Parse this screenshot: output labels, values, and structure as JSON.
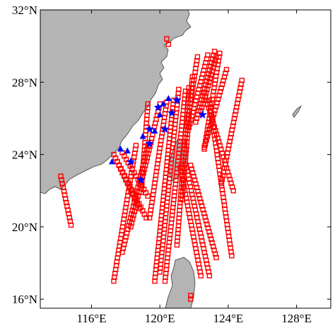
{
  "map": {
    "lat_ticks": [
      {
        "value": 32,
        "label": "32°N"
      },
      {
        "value": 28,
        "label": "28°N"
      },
      {
        "value": 24,
        "label": "24°N"
      },
      {
        "value": 20,
        "label": "20°N"
      },
      {
        "value": 16,
        "label": "16°N"
      }
    ],
    "lon_ticks": [
      {
        "value": 116,
        "label": "116°E"
      },
      {
        "value": 120,
        "label": "120°E"
      },
      {
        "value": 124,
        "label": "124°E"
      },
      {
        "value": 128,
        "label": "128°E"
      }
    ],
    "extent": {
      "lon": [
        113.0,
        130.0
      ],
      "lat": [
        15.5,
        32.0
      ]
    },
    "colors": {
      "land": "#b4b4b4",
      "land_edge": "#3c3c3c",
      "sea": "#ffffff",
      "track": "#ff0000",
      "station": "#0000ff"
    },
    "tracks": [
      [
        [
          114.2,
          22.8
        ],
        [
          114.8,
          20.1
        ]
      ],
      [
        [
          117.3,
          24.0
        ],
        [
          119.2,
          20.5
        ]
      ],
      [
        [
          117.8,
          24.1
        ],
        [
          119.3,
          21.7
        ]
      ],
      [
        [
          117.4,
          23.8
        ],
        [
          118.8,
          21.0
        ]
      ],
      [
        [
          118.6,
          24.5
        ],
        [
          117.3,
          17.0
        ]
      ],
      [
        [
          119.3,
          24.5
        ],
        [
          117.8,
          18.6
        ]
      ],
      [
        [
          119.3,
          26.8
        ],
        [
          118.9,
          21.9
        ]
      ],
      [
        [
          120.0,
          26.8
        ],
        [
          118.3,
          20.0
        ]
      ],
      [
        [
          120.4,
          26.9
        ],
        [
          119.4,
          20.5
        ]
      ],
      [
        [
          120.8,
          27.0
        ],
        [
          119.7,
          17.0
        ]
      ],
      [
        [
          121.1,
          27.6
        ],
        [
          120.0,
          17.5
        ]
      ],
      [
        [
          121.5,
          27.5
        ],
        [
          120.3,
          17.0
        ]
      ],
      [
        [
          121.7,
          27.7
        ],
        [
          121.0,
          19.0
        ]
      ],
      [
        [
          121.9,
          28.3
        ],
        [
          121.3,
          21.5
        ]
      ],
      [
        [
          122.2,
          29.4
        ],
        [
          121.4,
          24.5
        ]
      ],
      [
        [
          122.8,
          29.5
        ],
        [
          121.7,
          25.5
        ]
      ],
      [
        [
          123.2,
          29.7
        ],
        [
          122.1,
          25.8
        ]
      ],
      [
        [
          123.3,
          29.4
        ],
        [
          122.4,
          26.4
        ]
      ],
      [
        [
          123.5,
          29.6
        ],
        [
          122.6,
          24.3
        ]
      ],
      [
        [
          123.9,
          28.7
        ],
        [
          122.6,
          24.4
        ]
      ],
      [
        [
          124.8,
          28.1
        ],
        [
          123.6,
          22.4
        ]
      ],
      [
        [
          122.6,
          27.4
        ],
        [
          124.3,
          22.0
        ]
      ],
      [
        [
          122.9,
          27.0
        ],
        [
          124.2,
          18.4
        ]
      ],
      [
        [
          121.8,
          23.4
        ],
        [
          123.3,
          18.3
        ]
      ],
      [
        [
          121.5,
          23.5
        ],
        [
          122.9,
          17.3
        ]
      ],
      [
        [
          121.2,
          23.3
        ],
        [
          122.4,
          17.3
        ]
      ],
      [
        [
          120.4,
          30.4
        ],
        [
          120.5,
          30.1
        ]
      ],
      [
        [
          121.8,
          16.2
        ],
        [
          121.8,
          16.0
        ]
      ]
    ],
    "triangles": [
      [
        117.2,
        23.6
      ],
      [
        117.7,
        24.3
      ],
      [
        118.1,
        24.2
      ],
      [
        119.0,
        25.0
      ],
      [
        119.7,
        25.3
      ],
      [
        120.0,
        26.2
      ],
      [
        120.2,
        26.8
      ],
      [
        120.5,
        27.1
      ]
    ],
    "stars": [
      [
        118.3,
        23.6
      ],
      [
        118.9,
        22.6
      ],
      [
        119.4,
        24.6
      ],
      [
        119.4,
        25.4
      ],
      [
        119.9,
        26.6
      ],
      [
        120.3,
        25.4
      ],
      [
        120.7,
        26.3
      ],
      [
        121.0,
        27.0
      ],
      [
        122.5,
        26.2
      ]
    ]
  }
}
